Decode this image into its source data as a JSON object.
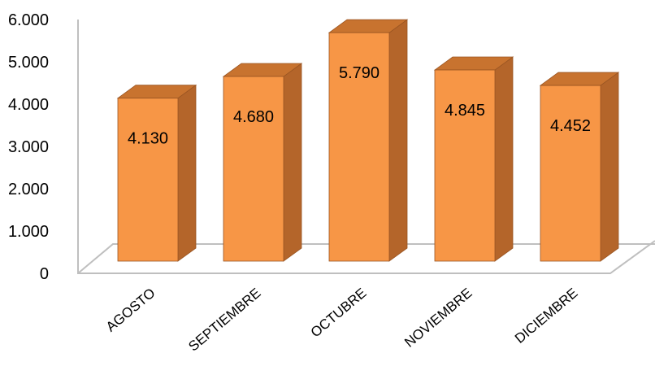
{
  "chart_data": {
    "type": "bar",
    "title": "",
    "xlabel": "",
    "ylabel": "",
    "categories": [
      "AGOSTO",
      "SEPTIEMBRE",
      "OCTUBRE",
      "NOVIEMBRE",
      "DICIEMBRE"
    ],
    "values": [
      4130,
      4680,
      5790,
      4845,
      4452
    ],
    "value_labels": [
      "4.130",
      "4.680",
      "5.790",
      "4.845",
      "4.452"
    ],
    "ylim": [
      0,
      6000
    ],
    "yticks": [
      0,
      1000,
      2000,
      3000,
      4000,
      5000,
      6000
    ],
    "ytick_labels": [
      "0",
      "1.000",
      "2.000",
      "3.000",
      "4.000",
      "5.000",
      "6.000"
    ],
    "grid": false,
    "legend": "none",
    "style": "3d-column",
    "colors": {
      "bar_front": "#F79646",
      "bar_side": "#B4652A",
      "bar_top": "#C8732F",
      "bar_edge": "#9A5522",
      "axis": "#BFBFBF"
    }
  }
}
